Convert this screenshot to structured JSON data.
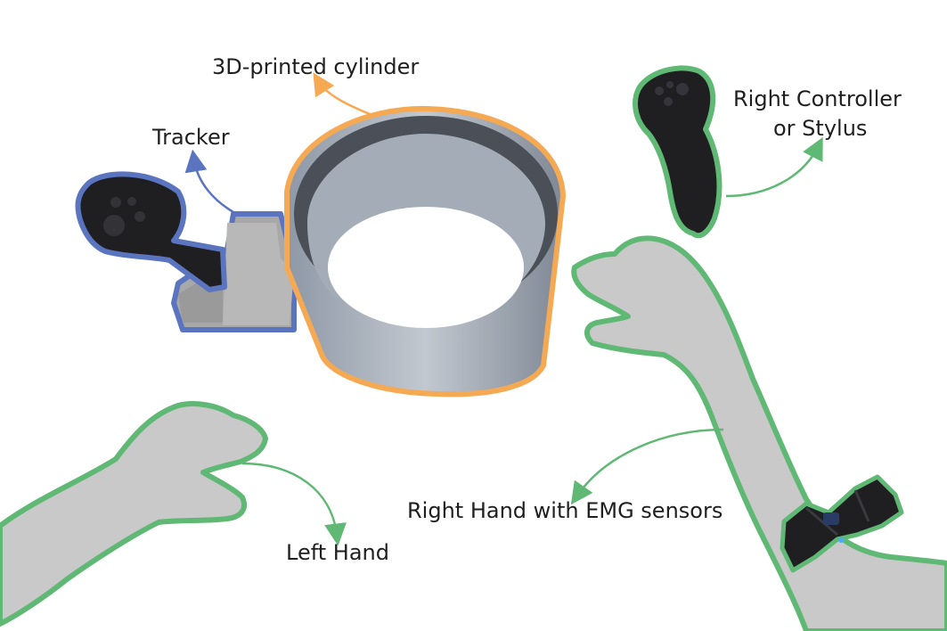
{
  "labels": {
    "cylinder": "3D-printed cylinder",
    "tracker": "Tracker",
    "right_controller_line1": "Right Controller",
    "right_controller_line2": "or Stylus",
    "left_hand": "Left Hand",
    "right_hand": "Right Hand with EMG sensors"
  },
  "colors": {
    "cylinder_outline": "#f6a953",
    "tracker_outline": "#5b74c0",
    "hand_outline": "#5fb874",
    "hand_fill": "#c9c9c9",
    "cylinder_fill": "#9ea7b3",
    "device_fill": "#1f1f22"
  },
  "icons": {
    "tracker": "vr-controller-icon",
    "right_controller": "vr-controller-icon",
    "armband": "emg-armband-icon"
  }
}
